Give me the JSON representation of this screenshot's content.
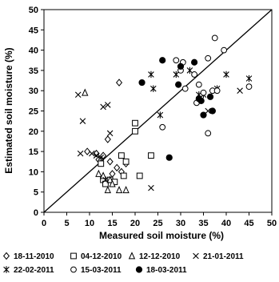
{
  "chart_data": {
    "type": "scatter",
    "title": "",
    "xlabel": "Measured soil moisture (%)",
    "ylabel": "Estimated soil moisture (%)",
    "xlim": [
      0,
      50
    ],
    "ylim": [
      0,
      50
    ],
    "xticks": [
      "0",
      "5",
      "10",
      "15",
      "20",
      "25",
      "30",
      "35",
      "40",
      "45",
      "50"
    ],
    "yticks": [
      "0",
      "5",
      "10",
      "15",
      "20",
      "25",
      "30",
      "35",
      "40",
      "45",
      "50"
    ],
    "reference_line": "1:1",
    "grid": false,
    "legend_position": "bottom",
    "series": [
      {
        "name": "18-11-2010",
        "marker": "diamond-open",
        "points": [
          [
            9.5,
            15
          ],
          [
            11.5,
            14.5
          ],
          [
            12,
            13
          ],
          [
            13,
            14
          ],
          [
            14,
            18
          ],
          [
            14.5,
            12.5
          ],
          [
            15,
            9.5
          ],
          [
            16,
            11
          ],
          [
            16.5,
            32
          ],
          [
            17,
            10
          ],
          [
            18,
            12
          ]
        ]
      },
      {
        "name": "04-12-2010",
        "marker": "square-open",
        "points": [
          [
            12.5,
            12
          ],
          [
            13,
            8
          ],
          [
            13.5,
            7
          ],
          [
            14.5,
            8
          ],
          [
            15.5,
            7.5
          ],
          [
            17,
            14
          ],
          [
            17.5,
            9
          ],
          [
            18,
            12.5
          ],
          [
            20,
            22
          ],
          [
            20,
            20
          ],
          [
            21,
            9
          ],
          [
            23.5,
            14
          ]
        ]
      },
      {
        "name": "12-12-2010",
        "marker": "triangle-open",
        "points": [
          [
            9,
            29.5
          ],
          [
            12,
            9.5
          ],
          [
            13,
            9
          ],
          [
            14,
            5.5
          ],
          [
            14.5,
            8
          ],
          [
            15,
            7
          ],
          [
            16.5,
            5.5
          ],
          [
            18,
            5.5
          ]
        ]
      },
      {
        "name": "21-01-2011",
        "marker": "x",
        "points": [
          [
            7.5,
            29
          ],
          [
            8,
            14.5
          ],
          [
            8.5,
            22.5
          ],
          [
            10.5,
            14.5
          ],
          [
            11.5,
            14
          ],
          [
            12.5,
            13.5
          ],
          [
            13,
            26
          ],
          [
            13.5,
            8
          ],
          [
            14,
            26.5
          ],
          [
            14.5,
            19.5
          ],
          [
            23.5,
            6
          ],
          [
            36,
            25
          ],
          [
            43,
            30
          ]
        ]
      },
      {
        "name": "22-02-2011",
        "marker": "asterisk",
        "points": [
          [
            23.5,
            34
          ],
          [
            24,
            30.5
          ],
          [
            25.5,
            24
          ],
          [
            29,
            34
          ],
          [
            32,
            35
          ],
          [
            34,
            29
          ],
          [
            35,
            29
          ],
          [
            38,
            30.5
          ],
          [
            40,
            34
          ],
          [
            45,
            33
          ]
        ]
      },
      {
        "name": "15-03-2011",
        "marker": "circle-open",
        "points": [
          [
            26,
            21
          ],
          [
            29,
            37.5
          ],
          [
            30,
            35
          ],
          [
            30.5,
            37
          ],
          [
            31,
            30.5
          ],
          [
            33,
            34
          ],
          [
            34,
            31.5
          ],
          [
            35,
            29.5
          ],
          [
            36,
            38
          ],
          [
            37,
            30
          ],
          [
            37.5,
            43
          ],
          [
            38,
            30
          ],
          [
            39.5,
            40
          ],
          [
            45,
            31
          ],
          [
            36,
            19.5
          ],
          [
            33.5,
            27
          ]
        ]
      },
      {
        "name": "18-03-2011",
        "marker": "circle-filled",
        "points": [
          [
            21.5,
            32
          ],
          [
            26,
            37.5
          ],
          [
            27.5,
            13.5
          ],
          [
            29.5,
            31.5
          ],
          [
            30,
            36
          ],
          [
            33,
            37
          ],
          [
            34,
            28
          ],
          [
            34.5,
            27.5
          ],
          [
            35,
            24
          ],
          [
            36.5,
            28.5
          ],
          [
            37,
            25
          ]
        ]
      }
    ]
  }
}
